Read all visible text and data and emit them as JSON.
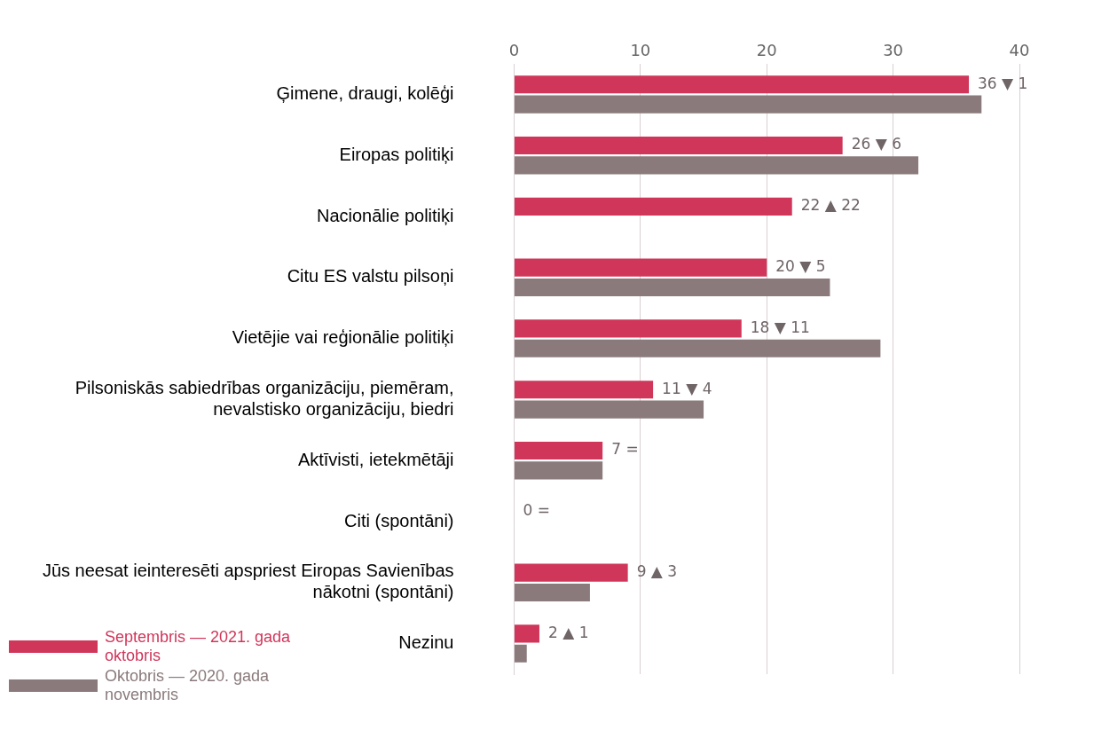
{
  "chart_data": {
    "type": "bar",
    "orientation": "horizontal",
    "categories": [
      "Ģimene, draugi, kolēģi",
      "Eiropas politiķi",
      "Nacionālie politiķi",
      "Citu ES valstu pilsoņi",
      "Vietējie vai reģionālie politiķi",
      "Pilsoniskās sabiedrības organizāciju, piemēram, nevalstisko organizāciju, biedri",
      "Aktīvisti, ietekmētāji",
      "Citi (spontāni)",
      "Jūs neesat ieinteresēti apspriest Eiropas Savienības nākotni (spontāni)",
      "Nezinu"
    ],
    "series": [
      {
        "name": "Septembris — 2021. gada oktobris",
        "color": "#d0365a",
        "values": [
          36,
          26,
          22,
          20,
          18,
          11,
          7,
          0,
          9,
          2
        ],
        "value_labels": [
          "36 ▼ 1",
          "26 ▼ 6",
          "22 ▲ 22",
          "20 ▼ 5",
          "18 ▼ 11",
          "11 ▼ 4",
          "7 =",
          "0 =",
          "9 ▲ 3",
          "2 ▲ 1"
        ]
      },
      {
        "name": "Oktobris — 2020. gada novembris",
        "color": "#8a7a7c",
        "values": [
          37,
          32,
          0,
          25,
          29,
          15,
          7,
          0,
          6,
          1
        ]
      }
    ],
    "xlim": [
      0,
      40
    ],
    "xticks": [
      0,
      10,
      20,
      30,
      40
    ],
    "grid": "x",
    "legend": "bottom left"
  }
}
